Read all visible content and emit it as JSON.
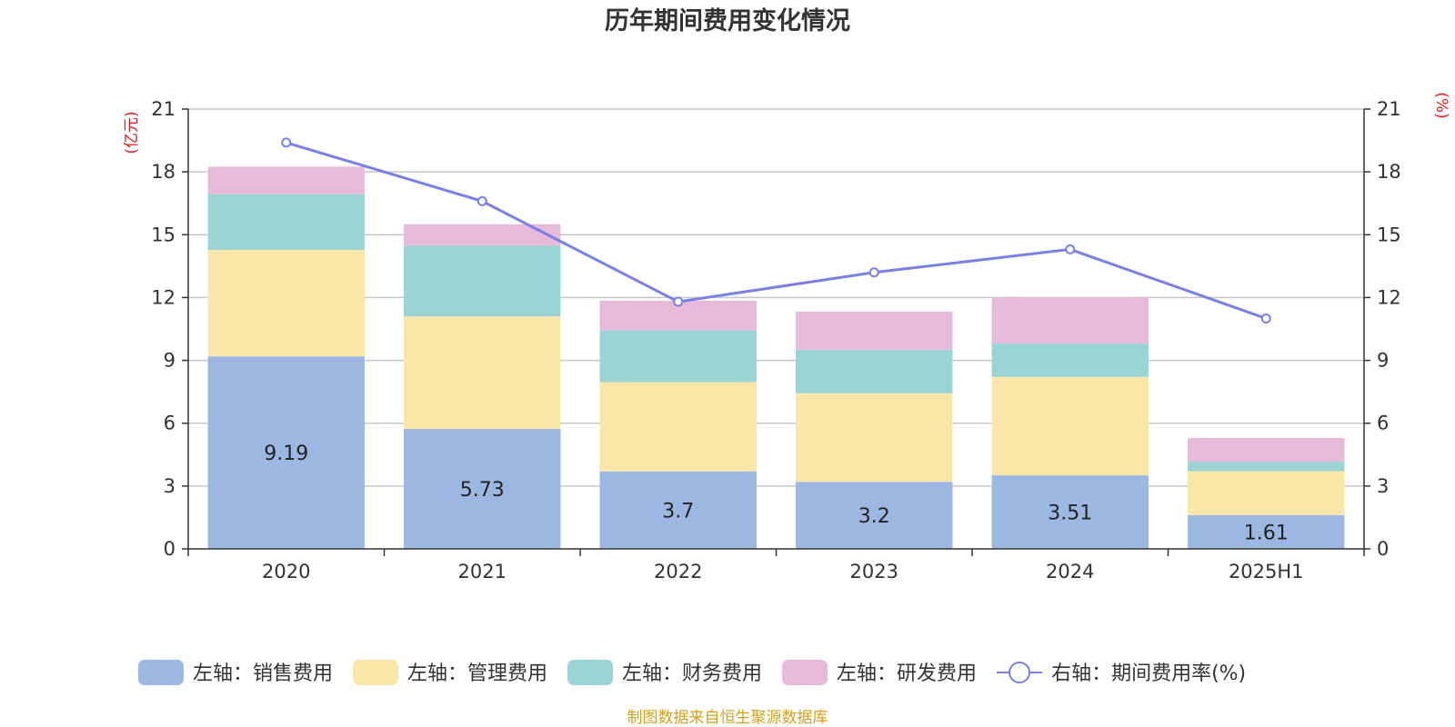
{
  "chart_data": {
    "type": "bar",
    "title": "历年期间费用变化情况",
    "categories": [
      "2020",
      "2021",
      "2022",
      "2023",
      "2024",
      "2025H1"
    ],
    "left_axis": {
      "unit": "(亿元)",
      "ylim": [
        0,
        21
      ],
      "ticks": [
        0,
        3,
        6,
        9,
        12,
        15,
        18,
        21
      ]
    },
    "right_axis": {
      "unit": "(%)",
      "ylim": [
        0,
        21
      ],
      "ticks": [
        0,
        3,
        6,
        9,
        12,
        15,
        18,
        21
      ]
    },
    "grid": true,
    "stacked": true,
    "series": [
      {
        "name": "左轴：销售费用",
        "type": "bar",
        "axis": "left",
        "color": "#9cb8e2",
        "values": [
          9.19,
          5.73,
          3.7,
          3.2,
          3.51,
          1.61
        ],
        "labels": [
          "9.19",
          "5.73",
          "3.7",
          "3.2",
          "3.51",
          "1.61"
        ]
      },
      {
        "name": "左轴：管理费用",
        "type": "bar",
        "axis": "left",
        "color": "#f8e7a8",
        "values": [
          5.08,
          5.37,
          4.26,
          4.23,
          4.7,
          2.1
        ]
      },
      {
        "name": "左轴：财务费用",
        "type": "bar",
        "axis": "left",
        "color": "#9ad4d4",
        "values": [
          2.68,
          3.38,
          2.47,
          2.08,
          1.6,
          0.45
        ]
      },
      {
        "name": "左轴：研发费用",
        "type": "bar",
        "axis": "left",
        "color": "#e8bada",
        "values": [
          1.3,
          1.02,
          1.42,
          1.82,
          2.19,
          1.14
        ]
      },
      {
        "name": "右轴：期间费用率(%)",
        "type": "line",
        "axis": "right",
        "color": "#7a7fe8",
        "values": [
          19.4,
          16.6,
          11.8,
          13.2,
          14.3,
          11.0
        ]
      }
    ],
    "legend_position": "bottom",
    "source": "制图数据来自恒生聚源数据库"
  }
}
